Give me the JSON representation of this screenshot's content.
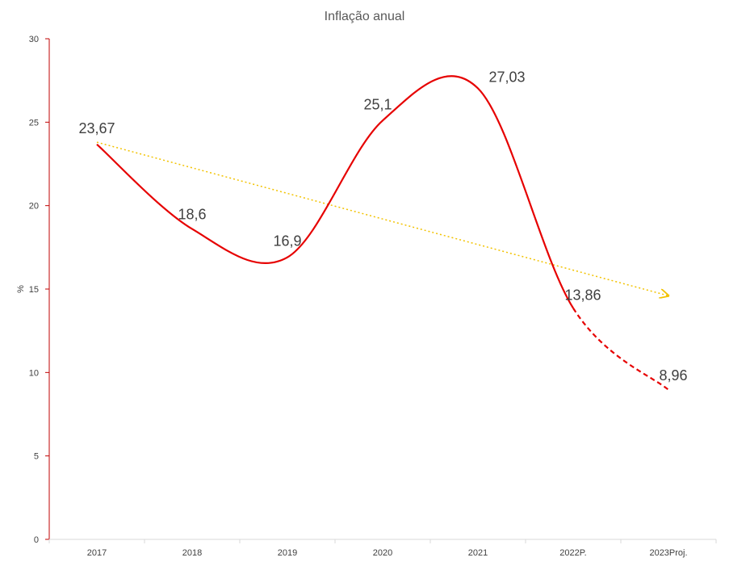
{
  "chart_data": {
    "type": "line",
    "title": "Inflação anual",
    "xlabel": "",
    "ylabel": "%",
    "categories": [
      "2017",
      "2018",
      "2019",
      "2020",
      "2021",
      "2022P.",
      "2023Proj."
    ],
    "series": [
      {
        "values": [
          23.67,
          18.6,
          16.9,
          25.1,
          27.03,
          13.86,
          8.96
        ],
        "data_labels": [
          "23,67",
          "18,6",
          "16,9",
          "25,1",
          "27,03",
          "13,86",
          "8,96"
        ],
        "color": "#e60000",
        "smooth": true,
        "dashed_from_index": 5
      }
    ],
    "trendline": {
      "from": 23.8,
      "to": 14.6,
      "color": "#f2c200",
      "style": "dotted",
      "arrow": true
    },
    "ylim": [
      0,
      30
    ],
    "yticks": [
      0,
      5,
      10,
      15,
      20,
      25,
      30
    ],
    "axis_color": "#c00000",
    "grid": false,
    "legend": "none"
  }
}
